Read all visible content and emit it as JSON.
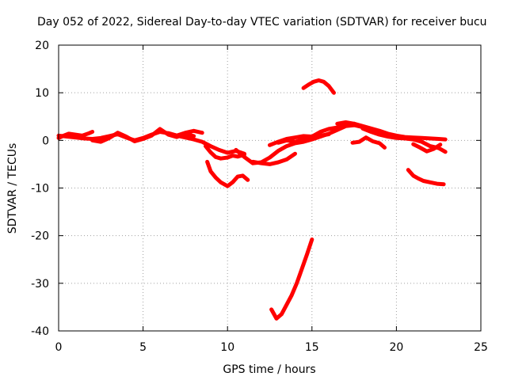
{
  "chart_data": {
    "type": "line",
    "title": "Day 052 of 2022, Sidereal Day-to-day VTEC variation (SDTVAR) for receiver bucu",
    "xlabel": "GPS time / hours",
    "ylabel": "SDTVAR / TECUs",
    "xlim": [
      0,
      25
    ],
    "ylim": [
      -40,
      20
    ],
    "xticks": [
      0,
      5,
      10,
      15,
      20,
      25
    ],
    "yticks": [
      -40,
      -30,
      -20,
      -10,
      0,
      10,
      20
    ],
    "grid": true,
    "legend": "none",
    "series_color": "#ff0000",
    "series": [
      {
        "name": "arc-1",
        "x": [
          0,
          0.3,
          0.6,
          1.0,
          1.4,
          1.8,
          2.0
        ],
        "y": [
          0.5,
          1.0,
          1.4,
          1.2,
          1.0,
          1.5,
          1.8
        ]
      },
      {
        "name": "arc-2",
        "x": [
          0,
          0.5,
          1.0,
          1.5,
          2.0,
          2.5,
          3.0,
          3.5,
          4.0,
          4.5,
          5.0,
          5.5,
          6.0,
          6.5,
          7.0,
          7.5,
          8.0,
          8.5
        ],
        "y": [
          1.0,
          0.8,
          0.6,
          0.4,
          0.3,
          0.5,
          0.9,
          1.3,
          0.6,
          0.0,
          0.5,
          1.2,
          1.8,
          1.5,
          1.0,
          1.6,
          2.0,
          1.6
        ]
      },
      {
        "name": "arc-3",
        "x": [
          2.0,
          2.5,
          3.0,
          3.5,
          4.0,
          4.5,
          5.0,
          5.5,
          6.0,
          6.5,
          7.0,
          7.5,
          8.0
        ],
        "y": [
          0.0,
          -0.3,
          0.5,
          1.6,
          0.8,
          -0.2,
          0.3,
          1.0,
          2.4,
          1.2,
          0.7,
          1.4,
          0.9
        ]
      },
      {
        "name": "arc-4",
        "x": [
          6.5,
          7.0,
          7.5,
          8.0,
          8.5,
          9.0,
          9.5,
          10.0,
          10.5,
          11.0
        ],
        "y": [
          1.5,
          1.0,
          0.6,
          0.2,
          -0.3,
          -1.2,
          -2.0,
          -2.6,
          -2.2,
          -2.8
        ]
      },
      {
        "name": "arc-5",
        "x": [
          8.7,
          9.0,
          9.3,
          9.6,
          10.0,
          10.3,
          10.6,
          11.0
        ],
        "y": [
          -1.2,
          -2.5,
          -3.5,
          -3.8,
          -3.6,
          -3.2,
          -3.4,
          -3.0
        ]
      },
      {
        "name": "arc-6",
        "x": [
          8.8,
          9.0,
          9.3,
          9.6,
          10.0,
          10.3,
          10.6,
          10.9,
          11.2
        ],
        "y": [
          -4.5,
          -6.5,
          -7.8,
          -8.8,
          -9.6,
          -8.8,
          -7.6,
          -7.4,
          -8.3
        ]
      },
      {
        "name": "arc-7",
        "x": [
          10.5,
          11.0,
          11.5,
          12.0,
          12.5,
          13.0,
          13.5,
          14.0,
          14.5,
          15.0,
          15.5,
          16.0,
          16.5,
          17.0,
          17.5,
          18.0
        ],
        "y": [
          -2.0,
          -3.5,
          -4.8,
          -4.6,
          -3.6,
          -2.2,
          -1.2,
          -0.6,
          -0.3,
          0.2,
          0.8,
          1.4,
          2.2,
          3.0,
          3.2,
          2.8
        ]
      },
      {
        "name": "arc-8",
        "x": [
          11.5,
          12.0,
          12.5,
          13.0,
          13.5,
          14.0
        ],
        "y": [
          -4.5,
          -4.8,
          -5.0,
          -4.6,
          -4.0,
          -2.8
        ]
      },
      {
        "name": "arc-9",
        "x": [
          12.5,
          13.0,
          13.5,
          14.0,
          14.5,
          15.0,
          15.5,
          16.0
        ],
        "y": [
          -1.0,
          -0.3,
          0.3,
          0.6,
          0.9,
          0.8,
          1.0,
          1.3
        ]
      },
      {
        "name": "arc-10",
        "x": [
          13.0,
          13.5,
          14.0,
          14.5,
          15.0,
          15.5,
          16.0,
          16.5,
          17.0,
          17.5
        ],
        "y": [
          -0.5,
          0.0,
          -0.3,
          0.2,
          0.8,
          1.8,
          2.4,
          2.7,
          3.2,
          3.5
        ]
      },
      {
        "name": "arc-11",
        "x": [
          14.5,
          14.8,
          15.1,
          15.4,
          15.7,
          16.0,
          16.3
        ],
        "y": [
          11.0,
          11.7,
          12.3,
          12.6,
          12.3,
          11.4,
          10.0
        ]
      },
      {
        "name": "arc-12",
        "x": [
          12.6,
          12.9,
          13.2,
          13.5,
          13.8,
          14.1,
          14.4,
          14.7,
          15.0
        ],
        "y": [
          -35.5,
          -37.4,
          -36.5,
          -34.5,
          -32.5,
          -30.0,
          -27.0,
          -24.0,
          -20.8
        ]
      },
      {
        "name": "arc-13",
        "x": [
          16.5,
          17.0,
          17.5,
          18.0,
          18.5,
          19.0,
          19.5,
          20.0,
          20.5,
          21.0,
          21.5,
          22.0,
          22.5,
          22.9
        ],
        "y": [
          3.5,
          3.8,
          3.5,
          3.0,
          2.5,
          2.0,
          1.4,
          1.0,
          0.7,
          0.6,
          0.5,
          0.4,
          0.3,
          0.2
        ]
      },
      {
        "name": "arc-14",
        "x": [
          18.0,
          18.5,
          19.0,
          19.5,
          20.0,
          20.5,
          21.0,
          21.5,
          22.0,
          22.5,
          22.9
        ],
        "y": [
          2.5,
          1.8,
          1.2,
          0.8,
          0.5,
          0.4,
          0.2,
          -0.3,
          -1.2,
          -1.6,
          -2.4
        ]
      },
      {
        "name": "arc-15",
        "x": [
          17.4,
          17.8,
          18.2,
          18.6,
          19.0,
          19.3
        ],
        "y": [
          -0.5,
          -0.3,
          0.6,
          -0.2,
          -0.6,
          -1.5
        ]
      },
      {
        "name": "arc-16",
        "x": [
          21.0,
          21.4,
          21.8,
          22.2,
          22.6
        ],
        "y": [
          -0.8,
          -1.5,
          -2.3,
          -1.8,
          -0.9
        ]
      },
      {
        "name": "arc-17",
        "x": [
          20.7,
          21.0,
          21.3,
          21.6,
          22.0,
          22.4,
          22.8
        ],
        "y": [
          -6.2,
          -7.4,
          -8.0,
          -8.5,
          -8.8,
          -9.1,
          -9.2
        ]
      }
    ]
  }
}
